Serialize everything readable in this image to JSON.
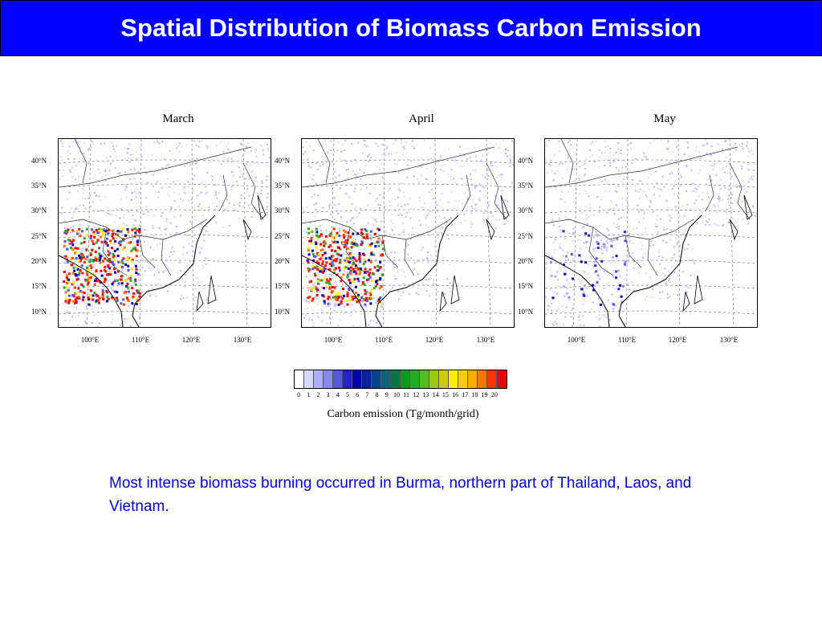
{
  "slide": {
    "title": "Spatial Distribution of Biomass Carbon Emission",
    "title_bg": "#0000ff",
    "note": "Most intense biomass burning occurred in Burma, northern part of Thailand, Laos, and Vietnam.",
    "note_color": "#0000cc"
  },
  "maps": [
    {
      "month": "March",
      "intensity": "high"
    },
    {
      "month": "April",
      "intensity": "high"
    },
    {
      "month": "May",
      "intensity": "low"
    }
  ],
  "lat_labels": [
    "40°N",
    "35°N",
    "30°N",
    "25°N",
    "20°N",
    "15°N",
    "10°N"
  ],
  "lon_labels": [
    "100°E",
    "110°E",
    "120°E",
    "130°E"
  ],
  "colorbar": {
    "caption": "Carbon emission (Tg/month/grid)",
    "ticks": [
      "0",
      "1",
      "2",
      "3",
      "4",
      "5",
      "6",
      "7",
      "8",
      "9",
      "10",
      "11",
      "12",
      "13",
      "14",
      "15",
      "16",
      "17",
      "18",
      "19",
      "20"
    ],
    "colors": [
      "#ffffff",
      "#d8d8ff",
      "#b0b0ff",
      "#8888ee",
      "#5555dd",
      "#2222cc",
      "#0000b0",
      "#002299",
      "#004488",
      "#006677",
      "#007744",
      "#009922",
      "#22aa22",
      "#55bb22",
      "#99cc11",
      "#cccc00",
      "#ffee00",
      "#ffcc00",
      "#ffaa00",
      "#ff7700",
      "#ff3300",
      "#ee0000"
    ]
  }
}
